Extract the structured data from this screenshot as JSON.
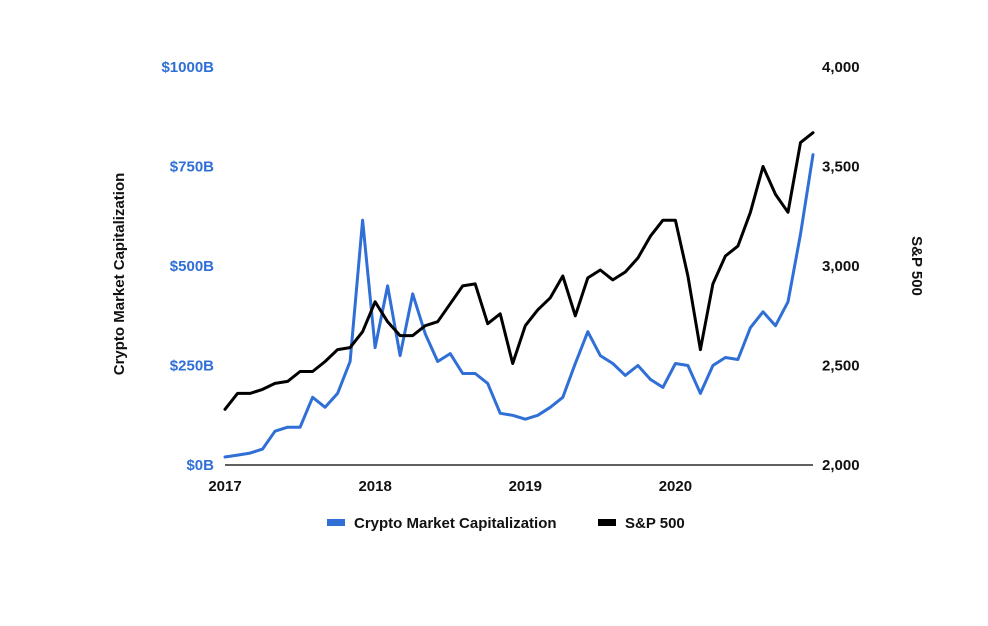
{
  "chart_data": {
    "type": "line",
    "title": "",
    "left_axis": {
      "label": "Crypto Market Capitalization",
      "ylim": [
        0,
        1000
      ],
      "ticks": [
        {
          "value": 0,
          "label": "$0B"
        },
        {
          "value": 250,
          "label": "$250B"
        },
        {
          "value": 500,
          "label": "$500B"
        },
        {
          "value": 750,
          "label": "$750B"
        },
        {
          "value": 1000,
          "label": "$1000B"
        }
      ]
    },
    "right_axis": {
      "label": "S&P 500",
      "ylim": [
        2000,
        4000
      ],
      "ticks": [
        {
          "value": 2000,
          "label": "2,000"
        },
        {
          "value": 2500,
          "label": "2,500"
        },
        {
          "value": 3000,
          "label": "3,000"
        },
        {
          "value": 3500,
          "label": "3,500"
        },
        {
          "value": 4000,
          "label": "4,000"
        }
      ]
    },
    "x_axis": {
      "xlim": [
        "2017-01",
        "2020-12"
      ],
      "ticks": [
        {
          "value": "2017-01",
          "label": "2017"
        },
        {
          "value": "2018-01",
          "label": "2018"
        },
        {
          "value": "2019-01",
          "label": "2019"
        },
        {
          "value": "2020-01",
          "label": "2020"
        }
      ]
    },
    "x": [
      "2017-01",
      "2017-02",
      "2017-03",
      "2017-04",
      "2017-05",
      "2017-06",
      "2017-07",
      "2017-08",
      "2017-09",
      "2017-10",
      "2017-11",
      "2017-12",
      "2018-01",
      "2018-02",
      "2018-03",
      "2018-04",
      "2018-05",
      "2018-06",
      "2018-07",
      "2018-08",
      "2018-09",
      "2018-10",
      "2018-11",
      "2018-12",
      "2019-01",
      "2019-02",
      "2019-03",
      "2019-04",
      "2019-05",
      "2019-06",
      "2019-07",
      "2019-08",
      "2019-09",
      "2019-10",
      "2019-11",
      "2019-12",
      "2020-01",
      "2020-02",
      "2020-03",
      "2020-04",
      "2020-05",
      "2020-06",
      "2020-07",
      "2020-08",
      "2020-09",
      "2020-10",
      "2020-11",
      "2020-12"
    ],
    "series": [
      {
        "name": "Crypto Market Capitalization",
        "axis": "left",
        "color": "#2f6fd6",
        "values": [
          20,
          25,
          30,
          40,
          85,
          95,
          95,
          170,
          145,
          180,
          260,
          615,
          295,
          450,
          275,
          430,
          330,
          260,
          280,
          230,
          230,
          205,
          130,
          125,
          115,
          125,
          145,
          170,
          255,
          335,
          275,
          255,
          225,
          250,
          215,
          195,
          255,
          250,
          180,
          250,
          270,
          265,
          345,
          385,
          350,
          410,
          580,
          780
        ]
      },
      {
        "name": "S&P 500",
        "axis": "right",
        "color": "#000000",
        "values": [
          2280,
          2360,
          2360,
          2380,
          2410,
          2420,
          2470,
          2470,
          2520,
          2580,
          2590,
          2670,
          2820,
          2720,
          2650,
          2650,
          2700,
          2720,
          2810,
          2900,
          2910,
          2710,
          2760,
          2510,
          2700,
          2780,
          2840,
          2950,
          2750,
          2940,
          2980,
          2930,
          2970,
          3040,
          3150,
          3230,
          3230,
          2950,
          2580,
          2910,
          3050,
          3100,
          3270,
          3500,
          3360,
          3270,
          3620,
          3670
        ]
      }
    ],
    "legend": {
      "placement": "bottom",
      "items": [
        {
          "label": "Crypto Market Capitalization",
          "color": "#2f6fd6"
        },
        {
          "label": "S&P 500",
          "color": "#000000"
        }
      ]
    },
    "grid": false
  }
}
